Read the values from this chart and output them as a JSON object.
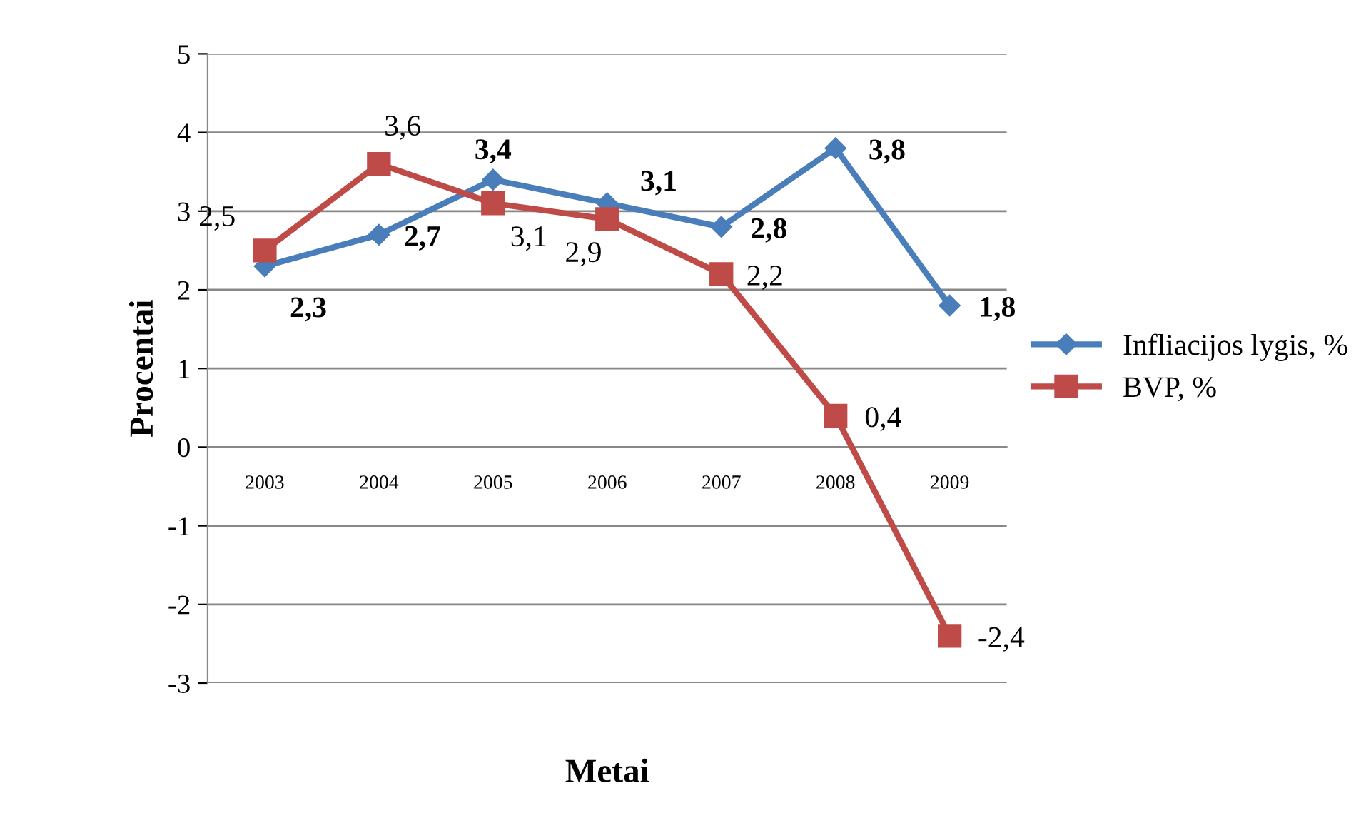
{
  "chart_data": {
    "type": "line",
    "xlabel": "Metai",
    "ylabel": "Procentai",
    "categories": [
      "2003",
      "2004",
      "2005",
      "2006",
      "2007",
      "2008",
      "2009"
    ],
    "series": [
      {
        "name": "Infliacijos lygis, %",
        "color": "#4a7ebb",
        "marker": "diamond",
        "values": [
          2.3,
          2.7,
          3.4,
          3.1,
          2.8,
          3.8,
          1.8
        ],
        "value_labels": [
          "2,3",
          "2,7",
          "3,4",
          "3,1",
          "2,8",
          "3,8",
          "1,8"
        ]
      },
      {
        "name": "BVP, %",
        "color": "#be4b48",
        "marker": "square",
        "values": [
          2.5,
          3.6,
          3.1,
          2.9,
          2.2,
          0.4,
          -2.4
        ],
        "value_labels": [
          "2,5",
          "3,6",
          "3,1",
          "2,9",
          "2,2",
          "0,4",
          "-2,4"
        ]
      }
    ],
    "ylim": [
      -3,
      5
    ],
    "yticks": [
      -3,
      -2,
      -1,
      0,
      1,
      2,
      3,
      4,
      5
    ],
    "grid": "y",
    "legend": "right"
  }
}
